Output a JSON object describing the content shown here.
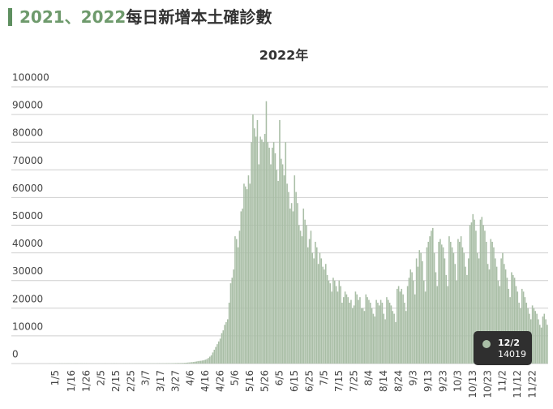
{
  "header": {
    "title_prefix": "2021、2022",
    "title": "每日新增本土確診數"
  },
  "chart_data": {
    "type": "bar",
    "title": "2022年",
    "color": "#a9bea6",
    "ylim": [
      0,
      100000
    ],
    "yticks": [
      0,
      10000,
      20000,
      30000,
      40000,
      50000,
      60000,
      70000,
      80000,
      90000,
      100000
    ],
    "grid": true,
    "categories": [
      null,
      null,
      null,
      null,
      "1/5",
      null,
      null,
      null,
      null,
      null,
      null,
      null,
      null,
      null,
      null,
      "1/16",
      null,
      null,
      null,
      null,
      null,
      null,
      null,
      null,
      null,
      "1/26",
      null,
      null,
      null,
      null,
      null,
      null,
      null,
      null,
      null,
      "2/5",
      null,
      null,
      null,
      null,
      null,
      null,
      null,
      null,
      null,
      "2/15",
      null,
      null,
      null,
      null,
      null,
      null,
      null,
      null,
      null,
      "2/25",
      null,
      null,
      null,
      null,
      null,
      null,
      null,
      null,
      null,
      "3/7",
      null,
      null,
      null,
      null,
      null,
      null,
      null,
      null,
      null,
      "3/17",
      null,
      null,
      null,
      null,
      null,
      null,
      null,
      null,
      null,
      "3/27",
      null,
      null,
      null,
      null,
      null,
      null,
      null,
      null,
      null,
      "4/6",
      null,
      null,
      null,
      null,
      null,
      null,
      null,
      null,
      null,
      "4/16",
      null,
      null,
      null,
      null,
      null,
      null,
      null,
      null,
      null,
      "4/26",
      null,
      null,
      null,
      null,
      null,
      null,
      null,
      null,
      null,
      "5/6",
      null,
      null,
      null,
      null,
      null,
      null,
      null,
      null,
      null,
      "5/16",
      null,
      null,
      null,
      null,
      null,
      null,
      null,
      null,
      null,
      "5/26",
      null,
      null,
      null,
      null,
      null,
      null,
      null,
      null,
      null,
      "6/5",
      null,
      null,
      null,
      null,
      null,
      null,
      null,
      null,
      null,
      "6/15",
      null,
      null,
      null,
      null,
      null,
      null,
      null,
      null,
      null,
      "6/25",
      null,
      null,
      null,
      null,
      null,
      null,
      null,
      null,
      null,
      "7/5",
      null,
      null,
      null,
      null,
      null,
      null,
      null,
      null,
      null,
      "7/15",
      null,
      null,
      null,
      null,
      null,
      null,
      null,
      null,
      null,
      "7/25",
      null,
      null,
      null,
      null,
      null,
      null,
      null,
      null,
      null,
      "8/4",
      null,
      null,
      null,
      null,
      null,
      null,
      null,
      null,
      null,
      "8/14",
      null,
      null,
      null,
      null,
      null,
      null,
      null,
      null,
      null,
      "8/24",
      null,
      null,
      null,
      null,
      null,
      null,
      null,
      null,
      null,
      "9/3",
      null,
      null,
      null,
      null,
      null,
      null,
      null,
      null,
      null,
      "9/13",
      null,
      null,
      null,
      null,
      null,
      null,
      null,
      null,
      null,
      "9/23",
      null,
      null,
      null,
      null,
      null,
      null,
      null,
      null,
      null,
      "10/3",
      null,
      null,
      null,
      null,
      null,
      null,
      null,
      null,
      null,
      "10/13",
      null,
      null,
      null,
      null,
      null,
      null,
      null,
      null,
      null,
      "10/23",
      null,
      null,
      null,
      null,
      null,
      null,
      null,
      null,
      null,
      "11/2",
      null,
      null,
      null,
      null,
      null,
      null,
      null,
      null,
      null,
      "11/12",
      null,
      null,
      null,
      null,
      null,
      null,
      null,
      null,
      null,
      "11/22",
      null,
      null,
      null,
      null,
      null,
      null,
      null,
      null,
      null,
      null
    ],
    "values": [
      25,
      30,
      28,
      35,
      40,
      38,
      42,
      45,
      50,
      48,
      55,
      52,
      60,
      58,
      62,
      55,
      50,
      65,
      70,
      60,
      58,
      55,
      60,
      52,
      48,
      50,
      45,
      40,
      42,
      38,
      35,
      30,
      28,
      32,
      35,
      40,
      38,
      42,
      45,
      40,
      38,
      42,
      45,
      48,
      50,
      46,
      44,
      40,
      42,
      45,
      48,
      50,
      55,
      52,
      50,
      48,
      52,
      55,
      58,
      60,
      62,
      58,
      65,
      70,
      68,
      72,
      75,
      80,
      78,
      85,
      90,
      88,
      95,
      100,
      110,
      105,
      115,
      120,
      125,
      130,
      140,
      135,
      150,
      160,
      170,
      180,
      190,
      200,
      210,
      220,
      230,
      260,
      300,
      350,
      400,
      450,
      500,
      550,
      650,
      750,
      850,
      950,
      1000,
      1100,
      1200,
      1400,
      1600,
      2000,
      2500,
      3000,
      4000,
      5000,
      6000,
      7000,
      8000,
      9000,
      11000,
      12000,
      14000,
      15000,
      16000,
      22000,
      29000,
      31000,
      34000,
      46000,
      45000,
      42000,
      48000,
      55000,
      56000,
      65000,
      64000,
      63000,
      68000,
      65000,
      80000,
      90000,
      85000,
      82000,
      88000,
      72000,
      82000,
      81000,
      80000,
      83000,
      94800,
      80000,
      78000,
      72000,
      78000,
      80000,
      76000,
      70000,
      66000,
      88000,
      74000,
      72000,
      68000,
      80000,
      65000,
      62000,
      56000,
      58000,
      55000,
      68000,
      62000,
      58000,
      50000,
      48000,
      46000,
      56000,
      52000,
      50000,
      42000,
      45000,
      48000,
      40000,
      38000,
      44000,
      42000,
      36000,
      40000,
      38000,
      35000,
      34000,
      36000,
      32000,
      30000,
      29000,
      26000,
      31000,
      30000,
      28000,
      26000,
      30000,
      28000,
      22000,
      24000,
      26000,
      25000,
      24000,
      22000,
      23000,
      20000,
      21000,
      26000,
      25000,
      23000,
      24000,
      20000,
      20000,
      19000,
      25000,
      24000,
      23000,
      22000,
      20000,
      18000,
      17000,
      23000,
      22000,
      21000,
      23000,
      22000,
      18000,
      16000,
      24000,
      23000,
      22000,
      21000,
      19000,
      18000,
      15000,
      27000,
      28000,
      26000,
      27000,
      25000,
      22000,
      19000,
      28000,
      31000,
      34000,
      33000,
      30000,
      25000,
      38000,
      35000,
      41000,
      40000,
      37000,
      30000,
      26000,
      42000,
      44000,
      46000,
      48000,
      49000,
      40000,
      33000,
      28000,
      44000,
      45000,
      43000,
      42000,
      38000,
      32000,
      28000,
      46000,
      44000,
      42000,
      40000,
      36000,
      30000,
      45000,
      44000,
      46000,
      42000,
      40000,
      35000,
      32000,
      38000,
      50000,
      51000,
      54000,
      52000,
      48000,
      40000,
      38000,
      52000,
      53000,
      50000,
      48000,
      44000,
      36000,
      34000,
      45000,
      44000,
      42000,
      38000,
      35000,
      30000,
      28000,
      38000,
      40000,
      36000,
      34000,
      31000,
      27000,
      24000,
      33000,
      32000,
      31000,
      28000,
      26000,
      22000,
      20000,
      27000,
      26000,
      24000,
      22000,
      20000,
      18000,
      16000,
      21000,
      20000,
      19000,
      18000,
      16000,
      14000,
      13000,
      17000,
      18000,
      16000,
      14019
    ],
    "tooltip": {
      "label": "12/2"
    }
  }
}
